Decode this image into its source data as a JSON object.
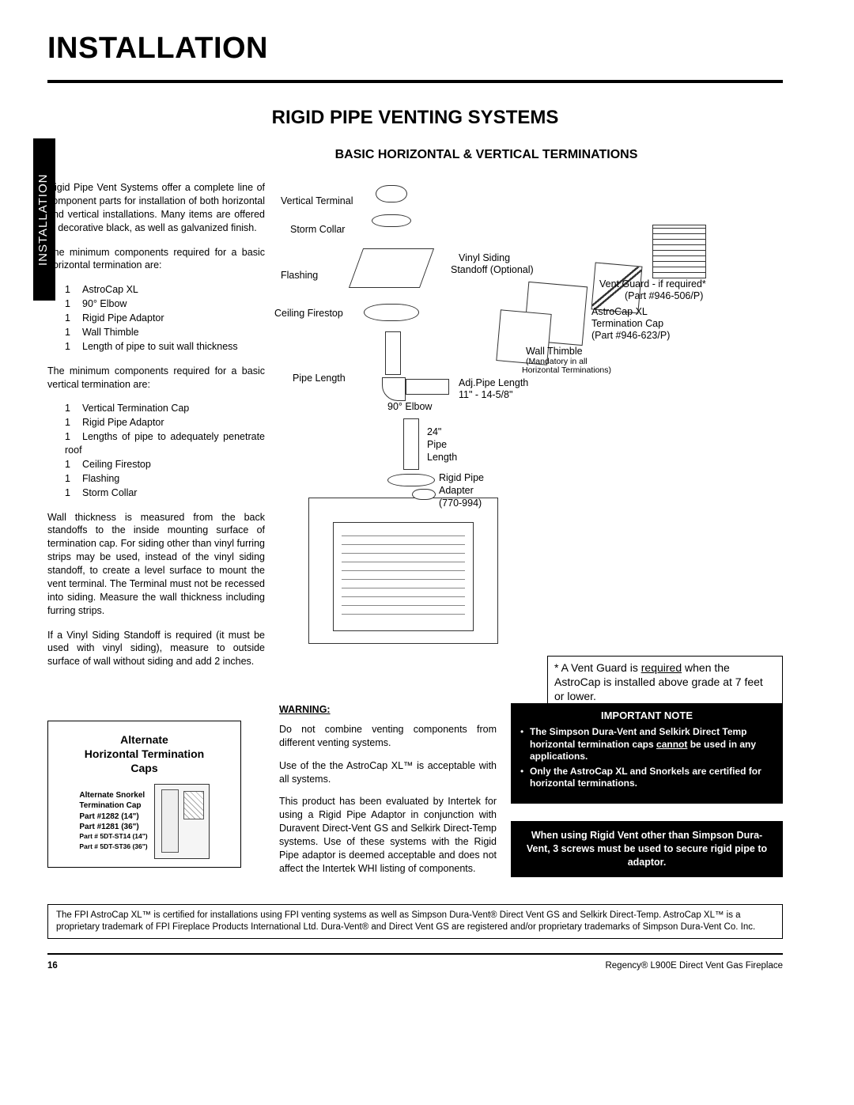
{
  "main_title": "INSTALLATION",
  "sidebar_tab": "INSTALLATION",
  "section_title": "RIGID PIPE VENTING SYSTEMS",
  "subsection_title": "BASIC HORIZONTAL & VERTICAL TERMINATIONS",
  "intro_p1": "Rigid Pipe Vent Systems offer a complete line of component parts for installation of both horizontal and vertical installations. Many items are offered in decorative black, as well as galvanized finish.",
  "intro_p2": "The minimum components required for a basic horizontal termination are:",
  "horiz_components": [
    {
      "qty": "1",
      "name": "AstroCap XL"
    },
    {
      "qty": "1",
      "name": "90° Elbow"
    },
    {
      "qty": "1",
      "name": "Rigid Pipe Adaptor"
    },
    {
      "qty": "1",
      "name": "Wall Thimble"
    },
    {
      "qty": "1",
      "name": "Length of pipe to suit wall thickness"
    }
  ],
  "intro_p3": "The minimum components required for a basic vertical termination are:",
  "vert_components": [
    {
      "qty": "1",
      "name": "Vertical Termination Cap"
    },
    {
      "qty": "1",
      "name": "Rigid Pipe Adaptor"
    },
    {
      "qty": "1",
      "name": "Lengths of pipe to adequately penetrate roof"
    },
    {
      "qty": "1",
      "name": "Ceiling Firestop"
    },
    {
      "qty": "1",
      "name": "Flashing"
    },
    {
      "qty": "1",
      "name": "Storm Collar"
    }
  ],
  "wall_para": "Wall thickness is measured from the back standoffs to the inside mounting surface of termination cap. For siding other than vinyl furring strips may be used, instead of the vinyl siding standoff, to create a level surface to mount the vent terminal. The Terminal must not be recessed into siding. Measure the wall thickness including furring strips.",
  "vinyl_para": "If a Vinyl Siding Standoff is required (it must be used with vinyl siding), measure to outside surface of wall without siding and add 2 inches.",
  "diagram_labels": {
    "vertical_terminal": "Vertical Terminal",
    "storm_collar": "Storm Collar",
    "flashing": "Flashing",
    "ceiling_firestop": "Ceiling Firestop",
    "vinyl_siding": "Vinyl Siding",
    "vinyl_siding2": "Standoff (Optional)",
    "vent_guard1": "Vent Guard - if required*",
    "vent_guard2": "(Part #946-506/P)",
    "astrocap1": "AstroCap XL",
    "astrocap2": "Termination Cap",
    "astrocap3": "(Part #946-623/P)",
    "wall_thimble": "Wall Thimble",
    "wall_thimble_sub": "(Mandatory in all",
    "wall_thimble_sub2": "Horizontal Terminations)",
    "pipe_length": "Pipe Length",
    "adj_pipe1": "Adj.Pipe Length",
    "adj_pipe2": "11\" - 14-5/8\"",
    "elbow": "90° Elbow",
    "pipe24_1": "24\"",
    "pipe24_2": "Pipe",
    "pipe24_3": "Length",
    "adapter1": "Rigid Pipe",
    "adapter2": "Adapter",
    "adapter3": "(770-994)"
  },
  "vent_guard_note_1": "* A Vent Guard is ",
  "vent_guard_note_req": "required",
  "vent_guard_note_2": " when the AstroCap is installed above grade at 7 feet or lower.",
  "alt_caps": {
    "title_l1": "Alternate",
    "title_l2": "Horizontal Termination",
    "title_l3": "Caps",
    "sub1": "Alternate Snorkel",
    "sub2": "Termination Cap",
    "sub3": "Part #1282 (14\")",
    "sub4": "Part #1281 (36\")",
    "sub5": "Part # 5DT-ST14 (14\")",
    "sub6": "Part # 5DT-ST36 (36\")"
  },
  "warning": {
    "title": "WARNING:",
    "p1": "Do not combine venting components from different venting systems.",
    "p2": "Use of the the AstroCap XL™ is acceptable with all systems.",
    "p3": "This product has been evaluated by Intertek for using a Rigid Pipe Adaptor in conjunction with Duravent Direct-Vent GS and Selkirk Direct-Temp systems. Use of these systems with the Rigid Pipe adaptor is deemed acceptable and does not affect the Intertek WHI listing of components."
  },
  "important": {
    "title": "IMPORTANT NOTE",
    "item1a": "The Simpson Dura-Vent and Selkirk Direct Temp horizontal termination caps ",
    "item1b": "cannot",
    "item1c": " be used in any applications.",
    "item2": "Only the AstroCap XL and Snorkels are certified for horizontal terminations."
  },
  "rigid_note": "When using Rigid Vent other than Simpson Dura-Vent, 3 screws must be used to secure rigid pipe to adaptor.",
  "footer_cert": "The FPI AstroCap XL™ is certified for installations using FPI venting systems as well as Simpson Dura-Vent® Direct Vent GS and Selkirk Direct-Temp. AstroCap XL™ is a proprietary trademark of FPI Fireplace Products International Ltd. Dura-Vent® and Direct Vent GS are registered and/or proprietary trademarks of Simpson Dura-Vent Co. Inc.",
  "page_number": "16",
  "product_footer": "Regency® L900E Direct Vent Gas Fireplace"
}
